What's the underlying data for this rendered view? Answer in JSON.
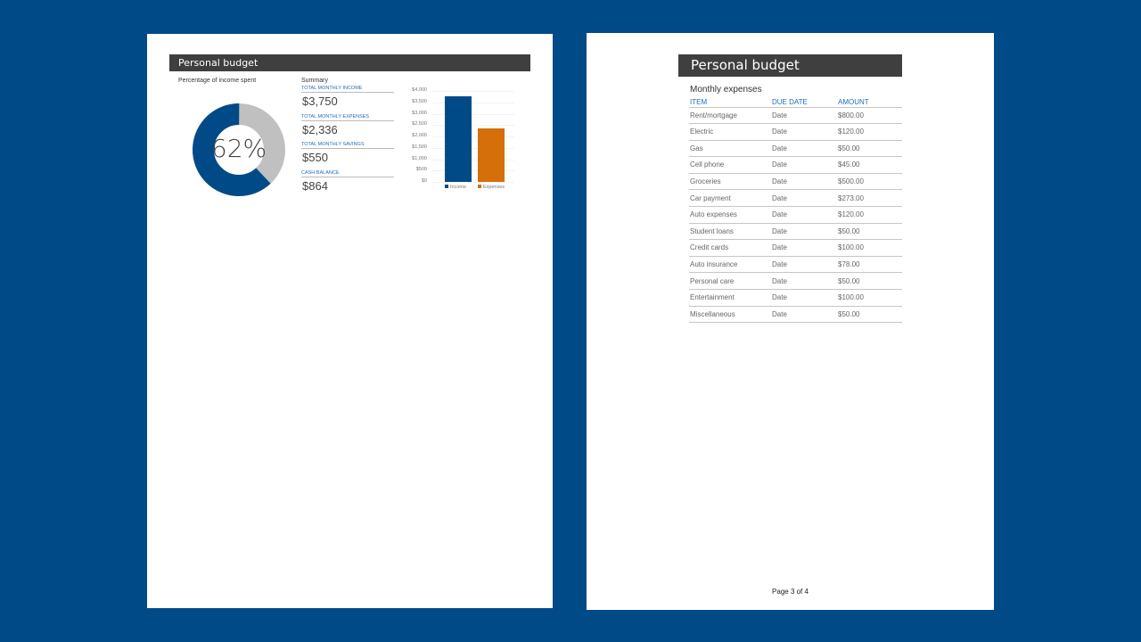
{
  "page1": {
    "title": "Personal budget",
    "donut_title": "Percentage of income spent",
    "percent_label": "62%",
    "percent_value": 62,
    "summary_title": "Summary",
    "summary": [
      {
        "label": "TOTAL MONTHLY INCOME",
        "value": "$3,750"
      },
      {
        "label": "TOTAL MONTHLY EXPENSES",
        "value": "$2,336"
      },
      {
        "label": "TOTAL MONTHLY SAVINGS",
        "value": "$550"
      },
      {
        "label": "CASH BALANCE",
        "value": "$864"
      }
    ],
    "colors": {
      "income": "#004b87",
      "expenses": "#d46f0a",
      "remaining": "#c0c0c0"
    }
  },
  "chart_data": {
    "type": "bar",
    "categories": [
      "Income",
      "Expenses"
    ],
    "values": [
      3750,
      2336
    ],
    "yticks": [
      "$4,000",
      "$3,500",
      "$3,000",
      "$2,500",
      "$2,000",
      "$1,500",
      "$1,000",
      "$500",
      "$0"
    ],
    "ylim": [
      0,
      4000
    ],
    "legend": [
      "Income",
      "Expenses"
    ],
    "legend_position": "bottom"
  },
  "page2": {
    "title": "Personal budget",
    "section": "Monthly expenses",
    "headers": [
      "ITEM",
      "DUE DATE",
      "AMOUNT"
    ],
    "rows": [
      [
        "Rent/mortgage",
        "Date",
        "$800.00"
      ],
      [
        "Electric",
        "Date",
        "$120.00"
      ],
      [
        "Gas",
        "Date",
        "$50.00"
      ],
      [
        "Cell phone",
        "Date",
        "$45.00"
      ],
      [
        "Groceries",
        "Date",
        "$500.00"
      ],
      [
        "Car payment",
        "Date",
        "$273.00"
      ],
      [
        "Auto expenses",
        "Date",
        "$120.00"
      ],
      [
        "Student loans",
        "Date",
        "$50.00"
      ],
      [
        "Credit cards",
        "Date",
        "$100.00"
      ],
      [
        "Auto insurance",
        "Date",
        "$78.00"
      ],
      [
        "Personal care",
        "Date",
        "$50.00"
      ],
      [
        "Entertainment",
        "Date",
        "$100.00"
      ],
      [
        "Miscellaneous",
        "Date",
        "$50.00"
      ]
    ],
    "footer": "Page 3 of 4"
  }
}
